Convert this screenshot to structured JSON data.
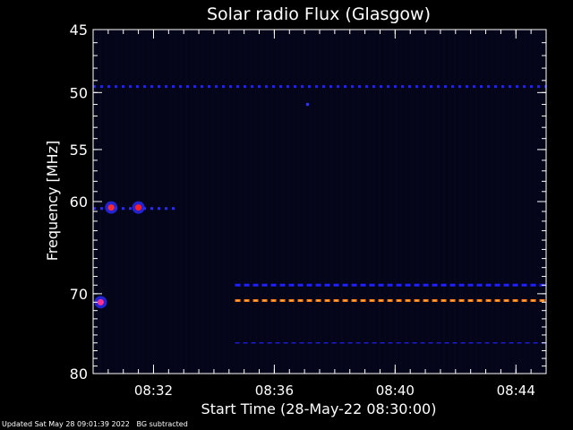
{
  "chart_data": {
    "type": "heatmap",
    "title": "Solar radio Flux (Glasgow)",
    "xlabel": "Start Time (28-May-22 08:30:00)",
    "ylabel": "Frequency [MHz]",
    "x_unit": "minutes after 08:30:00",
    "xlim": [
      0,
      15
    ],
    "ylim": [
      80,
      45
    ],
    "y_scale": "log",
    "x_ticks": [
      {
        "value": 2,
        "label": "08:32"
      },
      {
        "value": 6,
        "label": "08:36"
      },
      {
        "value": 10,
        "label": "08:40"
      },
      {
        "value": 14,
        "label": "08:44"
      }
    ],
    "y_ticks": [
      {
        "value": 45,
        "label": "45"
      },
      {
        "value": 50,
        "label": "50"
      },
      {
        "value": 55,
        "label": "55"
      },
      {
        "value": 60,
        "label": "60"
      },
      {
        "value": 70,
        "label": "70"
      },
      {
        "value": 80,
        "label": "80"
      }
    ],
    "features": [
      {
        "name": "band-49.5MHz",
        "freq_mhz": 49.5,
        "x_start": 0,
        "x_end": 15,
        "color": "#1f1fff",
        "style": "dotted"
      },
      {
        "name": "band-60.7MHz",
        "freq_mhz": 60.7,
        "x_start": 0,
        "x_end": 2.8,
        "color": "#2a2aff",
        "style": "dotted"
      },
      {
        "name": "band-69MHz",
        "freq_mhz": 69.0,
        "x_start": 4.7,
        "x_end": 15,
        "color": "#1f1fff",
        "style": "dashed"
      },
      {
        "name": "band-70.8MHz",
        "freq_mhz": 70.8,
        "x_start": 4.7,
        "x_end": 15,
        "color": "#ff7a10",
        "style": "dashed"
      },
      {
        "name": "band-76MHz",
        "freq_mhz": 76.0,
        "x_start": 4.7,
        "x_end": 15,
        "color": "#1a1ad0",
        "style": "thin-dashed"
      }
    ],
    "hotspots": [
      {
        "name": "burst-1",
        "x": 0.6,
        "freq_mhz": 60.6,
        "color": "#ff2a2a"
      },
      {
        "name": "burst-2",
        "x": 1.5,
        "freq_mhz": 60.6,
        "color": "#ff2020"
      },
      {
        "name": "burst-3",
        "x": 0.25,
        "freq_mhz": 71.0,
        "color": "#ff3090"
      },
      {
        "name": "dot-1",
        "x": 7.1,
        "freq_mhz": 51.0,
        "color": "#3030ff"
      }
    ],
    "colors": {
      "background": "#000000",
      "plot_bg": "#05051a",
      "axis": "#ffffff"
    }
  },
  "footer": {
    "updated": "Updated Sat May 28 09:01:39 2022",
    "bg_note": "BG subtracted"
  }
}
